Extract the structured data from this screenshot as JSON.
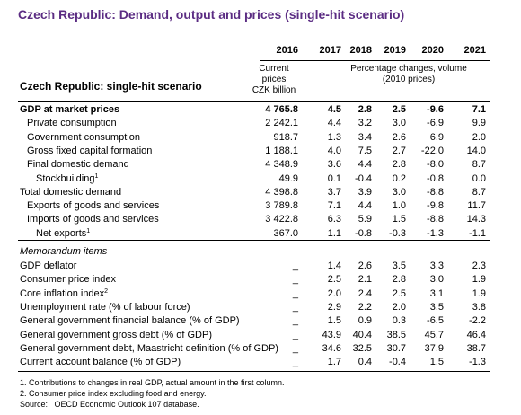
{
  "title": "Czech Republic: Demand, output and prices (single-hit scenario)",
  "table": {
    "row_header": "Czech Republic: single-hit scenario",
    "years": [
      "2016",
      "2017",
      "2018",
      "2019",
      "2020",
      "2021"
    ],
    "level_header": [
      "Current",
      "prices",
      "CZK billion"
    ],
    "change_header": [
      "Percentage changes, volume",
      "(2010 prices)"
    ],
    "rows": [
      {
        "label": "GDP at market prices",
        "values": [
          "4 765.8",
          "4.5",
          "2.8",
          "2.5",
          "-9.6",
          "7.1"
        ]
      },
      {
        "label": "Private consumption",
        "values": [
          "2 242.1",
          "4.4",
          "3.2",
          "3.0",
          "-6.9",
          "9.9"
        ]
      },
      {
        "label": "Government consumption",
        "values": [
          "918.7",
          "1.3",
          "3.4",
          "2.6",
          "6.9",
          "2.0"
        ]
      },
      {
        "label": "Gross fixed capital formation",
        "values": [
          "1 188.1",
          "4.0",
          "7.5",
          "2.7",
          "-22.0",
          "14.0"
        ]
      },
      {
        "label": "Final domestic demand",
        "values": [
          "4 348.9",
          "3.6",
          "4.4",
          "2.8",
          "-8.0",
          "8.7"
        ]
      },
      {
        "label": "Stockbuilding",
        "sup": "1",
        "values": [
          "49.9",
          "0.1",
          "-0.4",
          "0.2",
          "-0.8",
          "0.0"
        ]
      },
      {
        "label": "Total domestic demand",
        "values": [
          "4 398.8",
          "3.7",
          "3.9",
          "3.0",
          "-8.8",
          "8.7"
        ]
      },
      {
        "label": "Exports of goods and services",
        "values": [
          "3 789.8",
          "7.1",
          "4.4",
          "1.0",
          "-9.8",
          "11.7"
        ]
      },
      {
        "label": "Imports of goods and services",
        "values": [
          "3 422.8",
          "6.3",
          "5.9",
          "1.5",
          "-8.8",
          "14.3"
        ]
      },
      {
        "label": "Net exports",
        "sup": "1",
        "values": [
          "367.0",
          "1.1",
          "-0.8",
          "-0.3",
          "-1.3",
          "-1.1"
        ]
      }
    ],
    "memo_title": "Memorandum items",
    "memo_rows": [
      {
        "label": "GDP deflator",
        "values": [
          "_",
          "1.4",
          "2.6",
          "3.5",
          "3.3",
          "2.3"
        ]
      },
      {
        "label": "Consumer price index",
        "values": [
          "_",
          "2.5",
          "2.1",
          "2.8",
          "3.0",
          "1.9"
        ]
      },
      {
        "label": "Core inflation index",
        "sup": "2",
        "values": [
          "_",
          "2.0",
          "2.4",
          "2.5",
          "3.1",
          "1.9"
        ]
      },
      {
        "label": "Unemployment rate (% of labour force)",
        "values": [
          "_",
          "2.9",
          "2.2",
          "2.0",
          "3.5",
          "3.8"
        ]
      },
      {
        "label": "General government financial balance (% of GDP)",
        "values": [
          "_",
          "1.5",
          "0.9",
          "0.3",
          "-6.5",
          "-2.2"
        ]
      },
      {
        "label": "General government gross debt (% of GDP)",
        "values": [
          "_",
          "43.9",
          "40.4",
          "38.5",
          "45.7",
          "46.4"
        ]
      },
      {
        "label": "General government debt, Maastricht definition (% of GDP)",
        "values": [
          "_",
          "34.6",
          "32.5",
          "30.7",
          "37.9",
          "38.7"
        ]
      },
      {
        "label": "Current account balance (% of GDP)",
        "values": [
          "_",
          "1.7",
          "0.4",
          "-0.4",
          "1.5",
          "-1.3"
        ]
      }
    ]
  },
  "footnotes": [
    "1. Contributions to changes in real GDP, actual amount in the first column.",
    "2. Consumer price index excluding food and energy.",
    "Source:   OECD Economic Outlook 107 database."
  ]
}
